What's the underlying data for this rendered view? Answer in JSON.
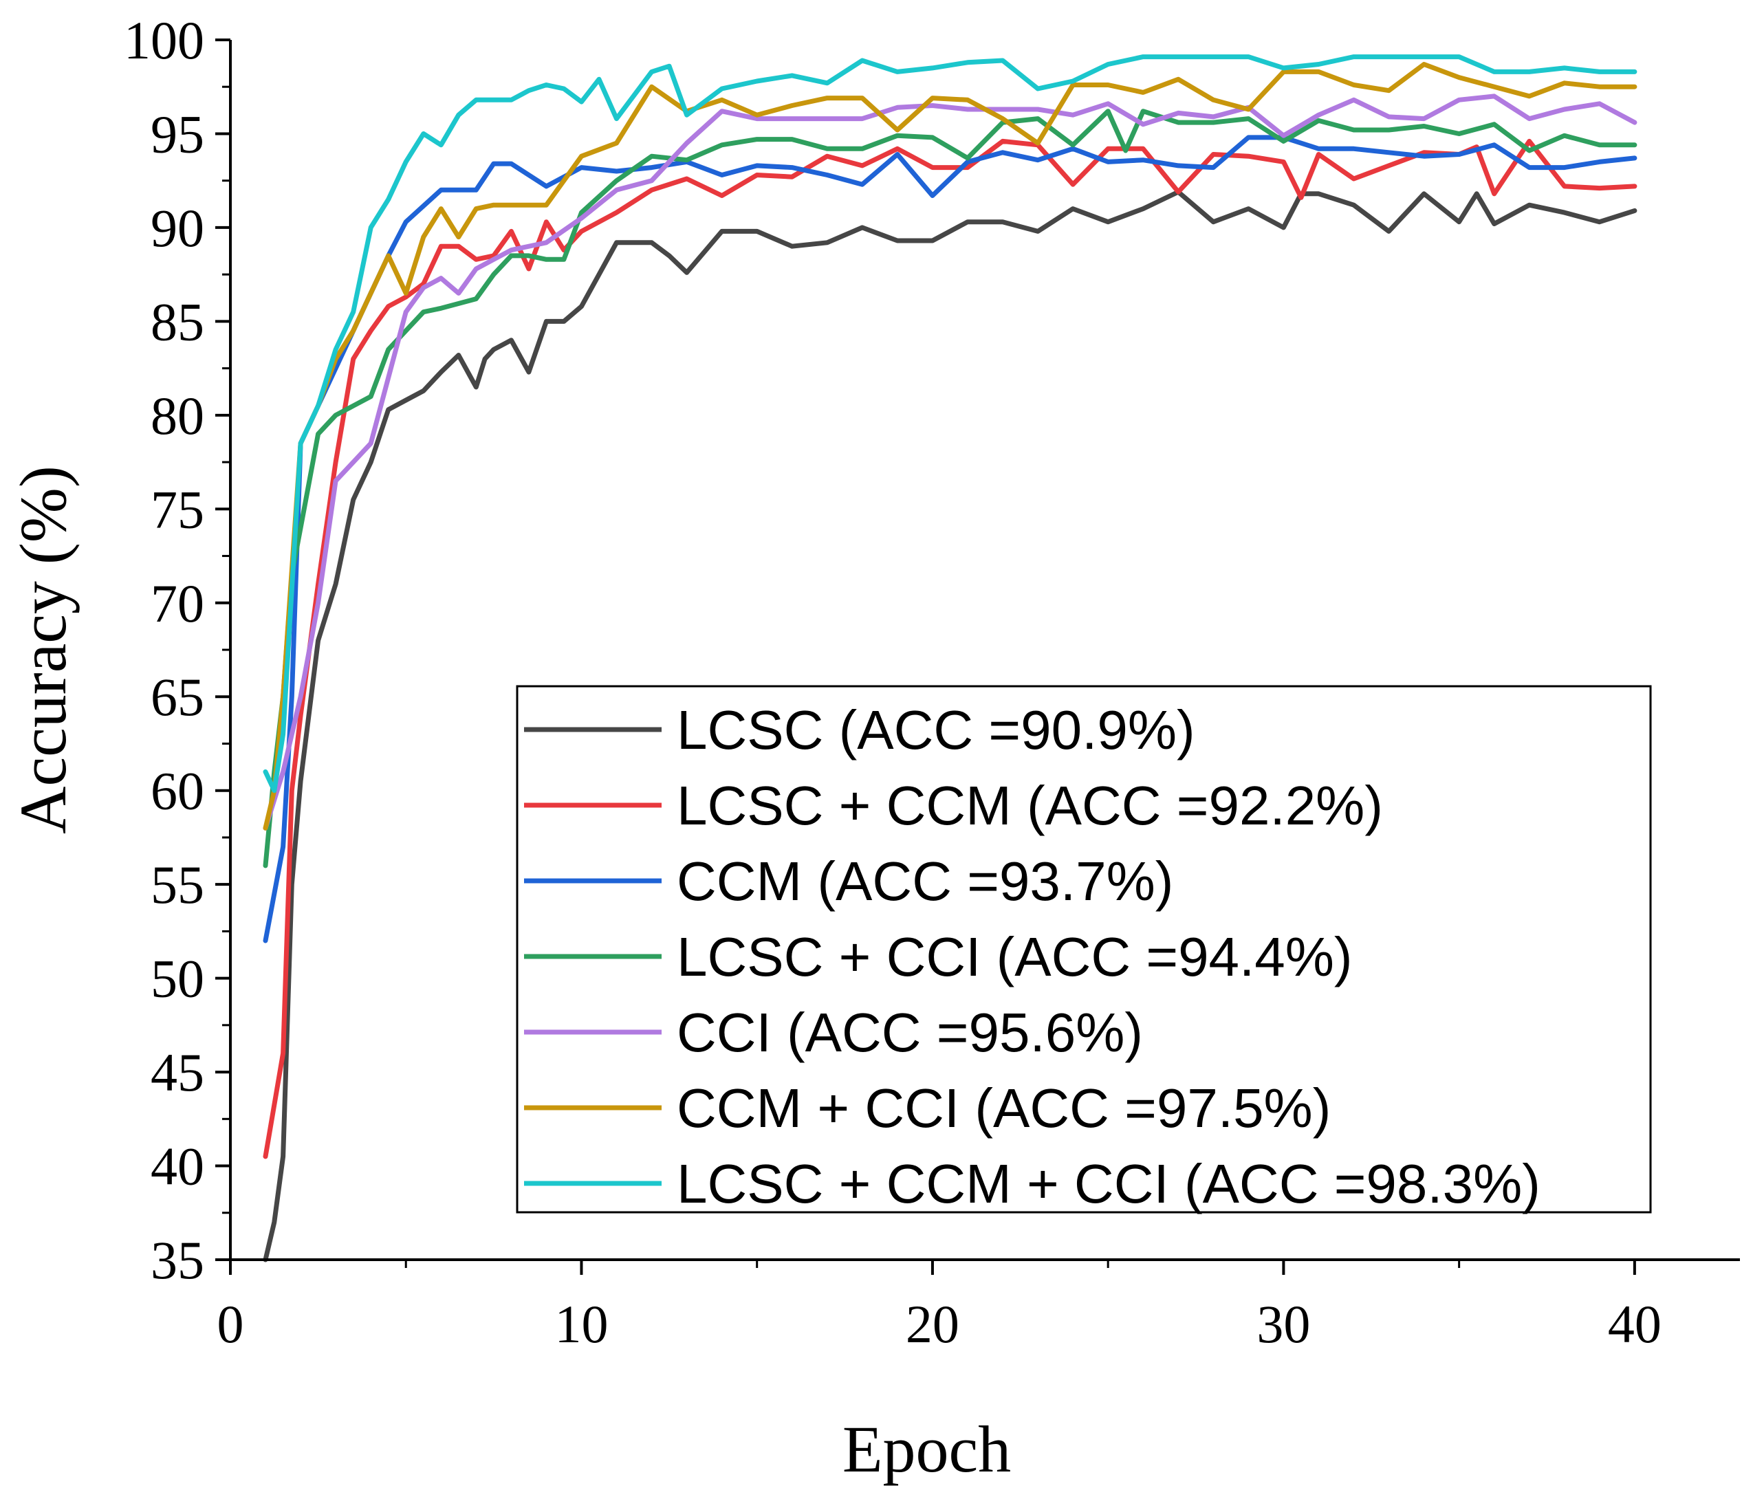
{
  "chart_data": {
    "type": "line",
    "title": "",
    "xlabel": "Epoch",
    "ylabel": "Accuracy (%)",
    "xlim": [
      0,
      43
    ],
    "ylim": [
      35,
      100
    ],
    "xticks": [
      0,
      10,
      20,
      30,
      40
    ],
    "yticks": [
      35,
      40,
      45,
      50,
      55,
      60,
      65,
      70,
      75,
      80,
      85,
      90,
      95,
      100
    ],
    "grid": false,
    "legend_position": "bottom-right",
    "series": [
      {
        "name": "LCSC (ACC =90.9%)",
        "color": "#464646",
        "x": [
          1,
          1.25,
          1.5,
          1.75,
          2,
          2.5,
          3,
          3.5,
          4,
          4.5,
          5,
          5.5,
          6,
          6.5,
          7,
          7.25,
          7.5,
          8,
          8.5,
          9,
          9.5,
          10,
          11,
          12,
          12.5,
          13,
          14,
          15,
          16,
          17,
          18,
          19,
          20,
          21,
          22,
          23,
          24,
          25,
          26,
          27,
          28,
          29,
          30,
          30.5,
          31,
          32,
          33,
          34,
          35,
          35.5,
          36,
          37,
          38,
          39,
          40
        ],
        "values": [
          35,
          37,
          40.5,
          55,
          60.5,
          68,
          71,
          75.5,
          77.5,
          80.3,
          80.8,
          81.3,
          82.3,
          83.2,
          81.5,
          83,
          83.5,
          84,
          82.3,
          85,
          85,
          85.8,
          89.2,
          89.2,
          88.5,
          87.6,
          89.8,
          89.8,
          89.0,
          89.2,
          90.0,
          89.3,
          89.3,
          90.3,
          90.3,
          89.8,
          91.0,
          90.3,
          91.0,
          91.9,
          90.3,
          91.0,
          90.0,
          91.8,
          91.8,
          91.2,
          89.8,
          91.8,
          90.3,
          91.8,
          90.2,
          91.2,
          90.8,
          90.3,
          90.9
        ]
      },
      {
        "name": "LCSC + CCM (ACC =92.2%)",
        "color": "#e8383d",
        "x": [
          1,
          1.5,
          1.75,
          2,
          2.5,
          3,
          3.5,
          4,
          4.5,
          5,
          5.5,
          6,
          6.5,
          7,
          7.5,
          8,
          8.5,
          9,
          9.5,
          10,
          11,
          12,
          13,
          14,
          15,
          16,
          17,
          18,
          19,
          20,
          21,
          22,
          23,
          24,
          25,
          26,
          27,
          28,
          29,
          30,
          30.5,
          31,
          32,
          33,
          34,
          35,
          35.5,
          36,
          37,
          38,
          39,
          40
        ],
        "values": [
          40.5,
          46,
          60,
          64,
          71,
          77.5,
          83,
          84.5,
          85.8,
          86.3,
          87,
          89,
          89,
          88.3,
          88.5,
          89.8,
          87.8,
          90.3,
          88.8,
          89.8,
          90.8,
          92.0,
          92.6,
          91.7,
          92.8,
          92.7,
          93.8,
          93.3,
          94.2,
          93.2,
          93.2,
          94.6,
          94.4,
          92.3,
          94.2,
          94.2,
          91.9,
          93.9,
          93.8,
          93.5,
          91.6,
          93.9,
          92.6,
          93.3,
          94.0,
          93.9,
          94.3,
          91.8,
          94.6,
          92.2,
          92.1,
          92.2
        ]
      },
      {
        "name": "CCM (ACC =93.7%)",
        "color": "#1f63d6",
        "x": [
          1,
          1.5,
          1.75,
          2,
          2.5,
          3,
          3.5,
          4,
          4.5,
          5,
          6,
          7,
          7.5,
          8,
          9,
          10,
          11,
          12,
          13,
          14,
          15,
          16,
          17,
          18,
          19,
          20,
          21,
          22,
          23,
          24,
          25,
          26,
          27,
          28,
          29,
          30,
          31,
          32,
          33,
          34,
          35,
          36,
          37,
          38,
          39,
          40
        ],
        "values": [
          52,
          57,
          65,
          78.5,
          80.5,
          82.5,
          84.5,
          86.5,
          88.5,
          90.3,
          92.0,
          92.0,
          93.4,
          93.4,
          92.2,
          93.2,
          93.0,
          93.2,
          93.5,
          92.8,
          93.3,
          93.2,
          92.8,
          92.3,
          93.9,
          91.7,
          93.5,
          94.0,
          93.6,
          94.2,
          93.5,
          93.6,
          93.3,
          93.2,
          94.8,
          94.8,
          94.2,
          94.2,
          94.0,
          93.8,
          93.9,
          94.4,
          93.2,
          93.2,
          93.5,
          93.7
        ]
      },
      {
        "name": "LCSC + CCI (ACC =94.4%)",
        "color": "#2e9f5e",
        "x": [
          1,
          1.25,
          1.5,
          1.75,
          2,
          2.5,
          3,
          3.5,
          4,
          4.5,
          5,
          5.5,
          6,
          7,
          7.5,
          8,
          8.5,
          9,
          9.5,
          10,
          11,
          12,
          13,
          14,
          15,
          16,
          17,
          18,
          19,
          20,
          21,
          22,
          23,
          24,
          25,
          25.5,
          26,
          27,
          28,
          29,
          30,
          31,
          32,
          33,
          34,
          35,
          36,
          37,
          38,
          39,
          40
        ],
        "values": [
          56,
          61,
          65,
          71.5,
          74,
          79,
          80,
          80.5,
          81,
          83.5,
          84.5,
          85.5,
          85.7,
          86.2,
          87.5,
          88.5,
          88.5,
          88.3,
          88.3,
          90.8,
          92.5,
          93.8,
          93.6,
          94.4,
          94.7,
          94.7,
          94.2,
          94.2,
          94.9,
          94.8,
          93.7,
          95.6,
          95.8,
          94.4,
          96.2,
          94.1,
          96.2,
          95.6,
          95.6,
          95.8,
          94.6,
          95.7,
          95.2,
          95.2,
          95.4,
          95.0,
          95.5,
          94.1,
          94.9,
          94.4,
          94.4
        ]
      },
      {
        "name": "CCI (ACC =95.6%)",
        "color": "#b07ae0",
        "x": [
          1,
          1.5,
          2,
          2.5,
          3,
          3.5,
          4,
          4.5,
          5,
          5.5,
          6,
          6.5,
          7,
          7.5,
          8,
          9,
          10,
          11,
          12,
          13,
          14,
          15,
          16,
          17,
          18,
          19,
          20,
          21,
          22,
          23,
          24,
          25,
          26,
          27,
          28,
          29,
          30,
          31,
          32,
          33,
          34,
          35,
          36,
          37,
          38,
          39,
          40
        ],
        "values": [
          58,
          61,
          65,
          70,
          76.5,
          77.5,
          78.5,
          82,
          85.5,
          86.8,
          87.3,
          86.5,
          87.8,
          88.3,
          88.8,
          89.2,
          90.5,
          92.0,
          92.5,
          94.5,
          96.2,
          95.8,
          95.8,
          95.8,
          95.8,
          96.4,
          96.5,
          96.3,
          96.3,
          96.3,
          96.0,
          96.6,
          95.5,
          96.1,
          95.9,
          96.4,
          94.9,
          96.0,
          96.8,
          95.9,
          95.8,
          96.8,
          97.0,
          95.8,
          96.3,
          96.6,
          95.6
        ]
      },
      {
        "name": "CCM + CCI (ACC =97.5%)",
        "color": "#c8960c",
        "x": [
          1,
          1.25,
          1.5,
          2,
          2.5,
          3,
          3.5,
          4,
          4.5,
          5,
          5.5,
          6,
          6.5,
          7,
          7.5,
          8,
          9,
          10,
          11,
          12,
          13,
          14,
          15,
          16,
          17,
          18,
          19,
          20,
          21,
          22,
          23,
          24,
          25,
          26,
          27,
          28,
          29,
          30,
          31,
          32,
          33,
          34,
          35,
          36,
          37,
          38,
          39,
          40
        ],
        "values": [
          58,
          60,
          65,
          78.5,
          80.5,
          83,
          84.5,
          86.5,
          88.5,
          86.5,
          89.5,
          91.0,
          89.5,
          91.0,
          91.2,
          91.2,
          91.2,
          93.8,
          94.5,
          97.5,
          96.2,
          96.8,
          96.0,
          96.5,
          96.9,
          96.9,
          95.2,
          96.9,
          96.8,
          95.8,
          94.5,
          97.6,
          97.6,
          97.2,
          97.9,
          96.8,
          96.3,
          98.3,
          98.3,
          97.6,
          97.3,
          98.7,
          98.0,
          97.5,
          97.0,
          97.7,
          97.5,
          97.5
        ]
      },
      {
        "name": "LCSC + CCM + CCI (ACC =98.3%)",
        "color": "#1cc6cc",
        "x": [
          1,
          1.25,
          1.5,
          2,
          2.5,
          3,
          3.5,
          4,
          4.5,
          5,
          5.5,
          6,
          6.5,
          7,
          7.5,
          8,
          8.5,
          9,
          9.5,
          10,
          10.5,
          11,
          12,
          12.5,
          13,
          14,
          15,
          16,
          17,
          18,
          19,
          20,
          21,
          22,
          23,
          24,
          25,
          26,
          27,
          28,
          29,
          30,
          31,
          32,
          33,
          34,
          35,
          36,
          37,
          38,
          39,
          40
        ],
        "values": [
          61,
          60,
          63,
          78.5,
          80.5,
          83.5,
          85.5,
          90.0,
          91.5,
          93.5,
          95.0,
          94.4,
          96.0,
          96.8,
          96.8,
          96.8,
          97.3,
          97.6,
          97.4,
          96.7,
          97.9,
          95.8,
          98.3,
          98.6,
          96.0,
          97.4,
          97.8,
          98.1,
          97.7,
          98.9,
          98.3,
          98.5,
          98.8,
          98.9,
          97.4,
          97.8,
          98.7,
          99.1,
          99.1,
          99.1,
          99.1,
          98.5,
          98.7,
          99.1,
          99.1,
          99.1,
          99.1,
          98.3,
          98.3,
          98.5,
          98.3,
          98.3
        ]
      }
    ]
  }
}
